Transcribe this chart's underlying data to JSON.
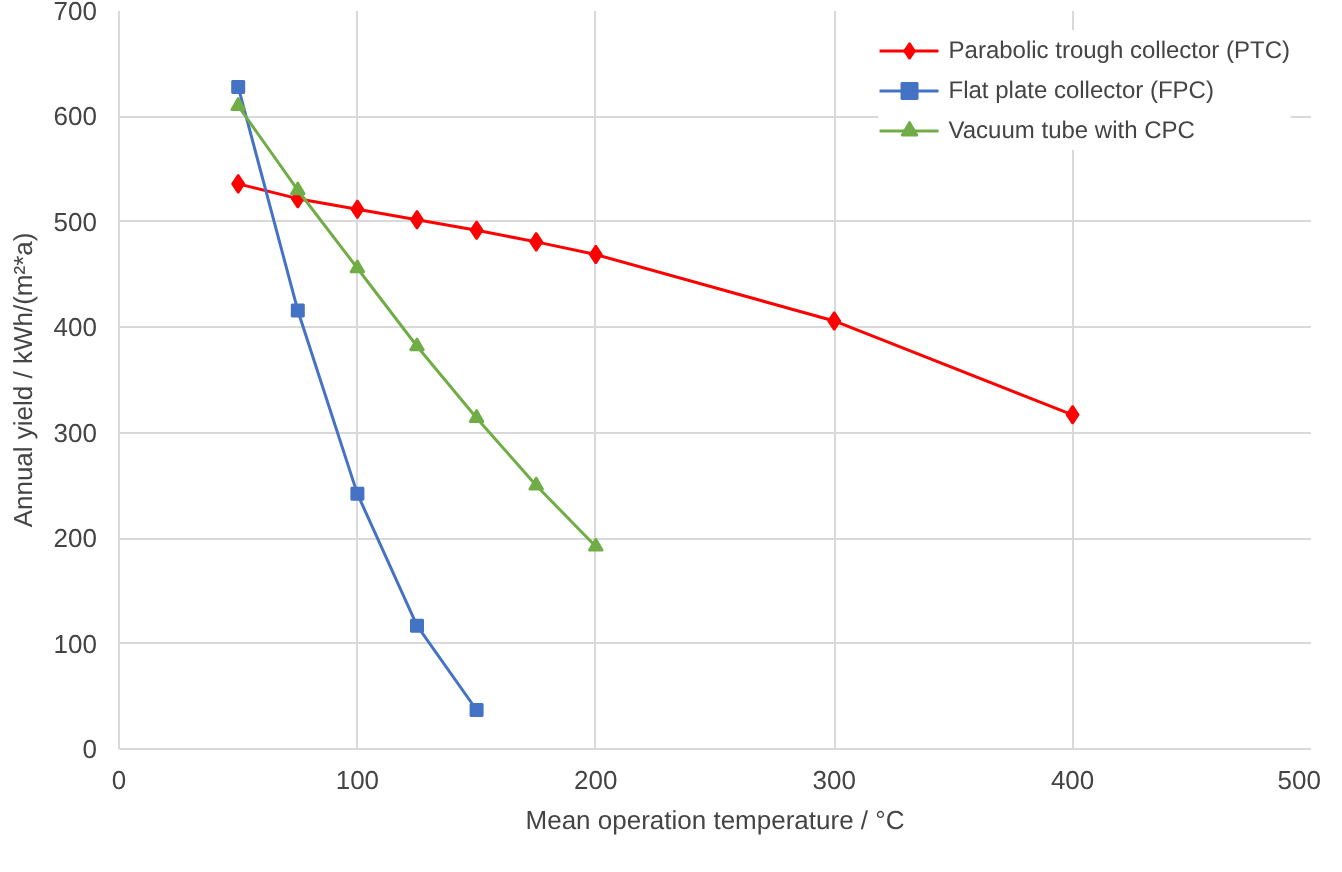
{
  "chart_data": {
    "type": "line",
    "xlabel": "Mean operation temperature / °C",
    "ylabel": "Annual yield / kWh/(m²*a)",
    "xlim": [
      0,
      500
    ],
    "xticks": [
      0,
      100,
      200,
      300,
      400,
      500
    ],
    "ylim": [
      0,
      700
    ],
    "yticks": [
      0,
      100,
      200,
      300,
      400,
      500,
      600,
      700
    ],
    "grid": true,
    "legend": "top right",
    "line_style": "solid",
    "series": [
      {
        "name": "Parabolic trough collector (PTC)",
        "color": "#ff0000",
        "marker": "diamond",
        "x": [
          50,
          75,
          100,
          125,
          150,
          175,
          200,
          300,
          400
        ],
        "values": [
          536,
          522,
          512,
          502,
          492,
          481,
          469,
          406,
          317
        ]
      },
      {
        "name": "Flat plate collector (FPC)",
        "color": "#4472c4",
        "marker": "square",
        "x": [
          50,
          75,
          100,
          125,
          150
        ],
        "values": [
          628,
          416,
          242,
          117,
          37
        ]
      },
      {
        "name": "Vacuum tube with CPC",
        "color": "#70ad47",
        "marker": "triangle",
        "x": [
          50,
          75,
          100,
          125,
          150,
          175,
          200
        ],
        "values": [
          610,
          530,
          456,
          382,
          314,
          250,
          192
        ]
      }
    ]
  }
}
